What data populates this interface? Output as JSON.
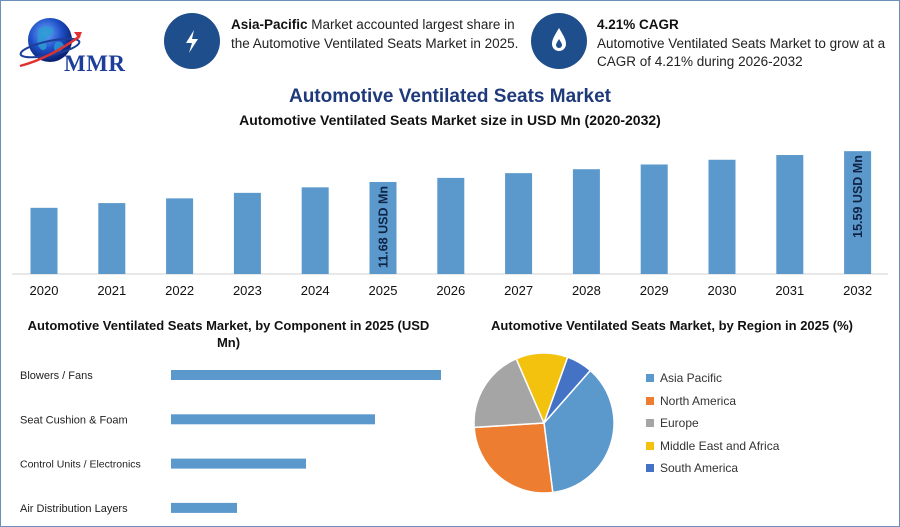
{
  "brand": {
    "logo_text": "MMR",
    "icon_color": "#1f4e8c"
  },
  "info": {
    "region_bold": "Asia-Pacific",
    "region_text": " Market accounted largest share in the Automotive Ventilated Seats Market in 2025.",
    "cagr_title": "4.21% CAGR",
    "cagr_text": "Automotive Ventilated Seats Market to grow at a CAGR of 4.21% during 2026-2032",
    "icon_left": "lightning-icon",
    "icon_right": "flame-drop-icon"
  },
  "title": "Automotive Ventilated Seats Market",
  "subtitle": "Automotive Ventilated Seats Market size in USD Mn (2020-2032)",
  "component_title": "Automotive Ventilated Seats Market, by Component in 2025 (USD Mn)",
  "region_title": "Automotive Ventilated Seats Market, by Region in 2025 (%)",
  "chart_data": [
    {
      "type": "bar",
      "title": "Automotive Ventilated Seats Market size in USD Mn (2020-2032)",
      "categories": [
        "2020",
        "2021",
        "2022",
        "2023",
        "2024",
        "2025",
        "2026",
        "2027",
        "2028",
        "2029",
        "2030",
        "2031",
        "2032"
      ],
      "values": [
        8.4,
        9.0,
        9.6,
        10.3,
        11.0,
        11.68,
        12.2,
        12.8,
        13.3,
        13.9,
        14.5,
        15.1,
        15.59
      ],
      "ylim": [
        0,
        16.5
      ],
      "data_labels": [
        {
          "index": 5,
          "text": "11.68 USD Mn"
        },
        {
          "index": 12,
          "text": "15.59 USD Mn"
        }
      ],
      "color": "#5b98cc"
    },
    {
      "type": "bar",
      "orientation": "horizontal",
      "title": "Automotive Ventilated Seats Market, by Component in 2025 (USD Mn)",
      "categories": [
        "Blowers / Fans",
        "Seat Cushion & Foam",
        "Control Units / Electronics",
        "Air Distribution Layers"
      ],
      "values": [
        4.5,
        3.4,
        2.25,
        1.1
      ],
      "xlim": [
        0,
        4.5
      ],
      "color": "#5b98cc"
    },
    {
      "type": "pie",
      "title": "Automotive Ventilated Seats Market, by Region in 2025 (%)",
      "categories": [
        "Asia Pacific",
        "North America",
        "Europe",
        "Middle East and Africa",
        "South America"
      ],
      "values": [
        36.5,
        26.0,
        19.5,
        12.0,
        6.0
      ],
      "colors": [
        "#5b98cc",
        "#ed7d31",
        "#a5a5a5",
        "#f2c20f",
        "#4472c4"
      ]
    }
  ]
}
